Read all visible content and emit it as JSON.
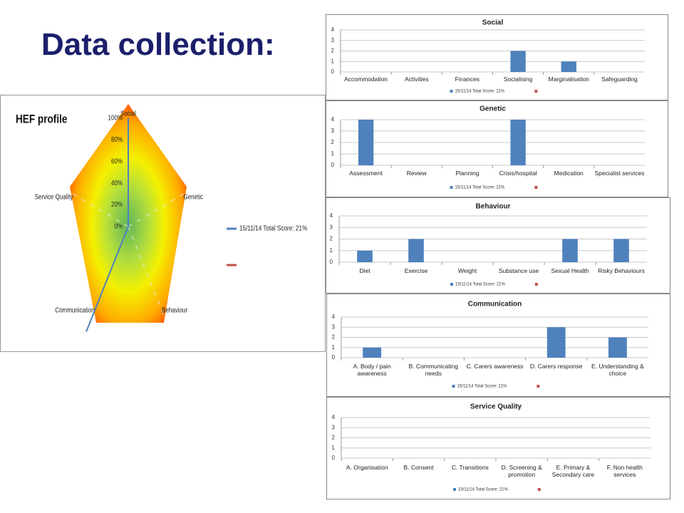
{
  "title": "Data collection:",
  "chart_data": [
    {
      "type": "radar",
      "title": "HEF profile",
      "categories": [
        "Social",
        "Genetic",
        "Behaviour",
        "Communication",
        "Service Quality"
      ],
      "series": [
        {
          "name": "15/11/14 Total Score: 21%",
          "color": "#4f81bd",
          "values": [
            100,
            0,
            0,
            120,
            0
          ]
        },
        {
          "name": null,
          "color": "#c0504d",
          "values": [
            null,
            null,
            null,
            null,
            null
          ]
        }
      ],
      "ylim": [
        0,
        100
      ],
      "yticks": [
        {
          "value": 0,
          "label": "0%"
        },
        {
          "value": 20,
          "label": "20%"
        },
        {
          "value": 40,
          "label": "40%"
        },
        {
          "value": 60,
          "label": "60%"
        },
        {
          "value": 80,
          "label": "80%"
        },
        {
          "value": 100,
          "label": "100%"
        }
      ]
    },
    {
      "type": "bar",
      "title": "Social",
      "categories": [
        "Accommodation",
        "Activities",
        "Finances",
        "Socialising",
        "Marginalisation",
        "Safeguarding"
      ],
      "series": [
        {
          "name": "15/11/14 Total Score: 21%",
          "color": "#4f81bd",
          "values": [
            0,
            0,
            0,
            2,
            1,
            0
          ]
        },
        {
          "name": null,
          "color": "#c0504d",
          "values": [
            null,
            null,
            null,
            null,
            null,
            null
          ]
        }
      ],
      "ylim": [
        0,
        4
      ],
      "yticks": [
        0,
        1,
        2,
        3,
        4
      ],
      "grid": true
    },
    {
      "type": "bar",
      "title": "Genetic",
      "categories": [
        "Assessment",
        "Review",
        "Planning",
        "Crisis/hospital",
        "Medication",
        "Specialist services"
      ],
      "series": [
        {
          "name": "15/11/14 Total Score: 21%",
          "color": "#4f81bd",
          "values": [
            4,
            0,
            0,
            4,
            0,
            0
          ]
        },
        {
          "name": null,
          "color": "#c0504d",
          "values": [
            null,
            null,
            null,
            null,
            null,
            null
          ]
        }
      ],
      "ylim": [
        0,
        4
      ],
      "yticks": [
        0,
        1,
        2,
        3,
        4
      ],
      "grid": true
    },
    {
      "type": "bar",
      "title": "Behaviour",
      "categories": [
        "Diet",
        "Exercise",
        "Weight",
        "Substance use",
        "Sexual Health",
        "Risky Behaviours"
      ],
      "series": [
        {
          "name": "15/11/14 Total Score: 21%",
          "color": "#4f81bd",
          "values": [
            1,
            2,
            0,
            0,
            2,
            2
          ]
        },
        {
          "name": null,
          "color": "#c0504d",
          "values": [
            null,
            null,
            null,
            null,
            null,
            null
          ]
        }
      ],
      "ylim": [
        0,
        4
      ],
      "yticks": [
        0,
        1,
        2,
        3,
        4
      ],
      "grid": true
    },
    {
      "type": "bar",
      "title": "Communication",
      "categories": [
        "A. Body / pain awareness",
        "B. Communicating needs",
        "C. Carers awareness",
        "D. Carers response",
        "E. Understanding & choice"
      ],
      "series": [
        {
          "name": "15/11/14 Total Score: 21%",
          "color": "#4f81bd",
          "values": [
            1,
            0,
            0,
            3,
            2
          ]
        },
        {
          "name": null,
          "color": "#c0504d",
          "values": [
            null,
            null,
            null,
            null,
            null
          ]
        }
      ],
      "ylim": [
        0,
        4
      ],
      "yticks": [
        0,
        1,
        2,
        3,
        4
      ],
      "grid": true
    },
    {
      "type": "bar",
      "title": "Service Quality",
      "categories": [
        "A. Organisation",
        "B. Consent",
        "C. Transitions",
        "D. Screening & promotion",
        "E. Primary & Secondary care",
        "F. Non health services"
      ],
      "series": [
        {
          "name": "15/11/14 Total Score: 21%",
          "color": "#4f81bd",
          "values": [
            0,
            0,
            0,
            0,
            0,
            0
          ]
        },
        {
          "name": null,
          "color": "#c0504d",
          "values": [
            null,
            null,
            null,
            null,
            null,
            null
          ]
        }
      ],
      "ylim": [
        0,
        4
      ],
      "yticks": [
        0,
        1,
        2,
        3,
        4
      ],
      "grid": true
    }
  ]
}
